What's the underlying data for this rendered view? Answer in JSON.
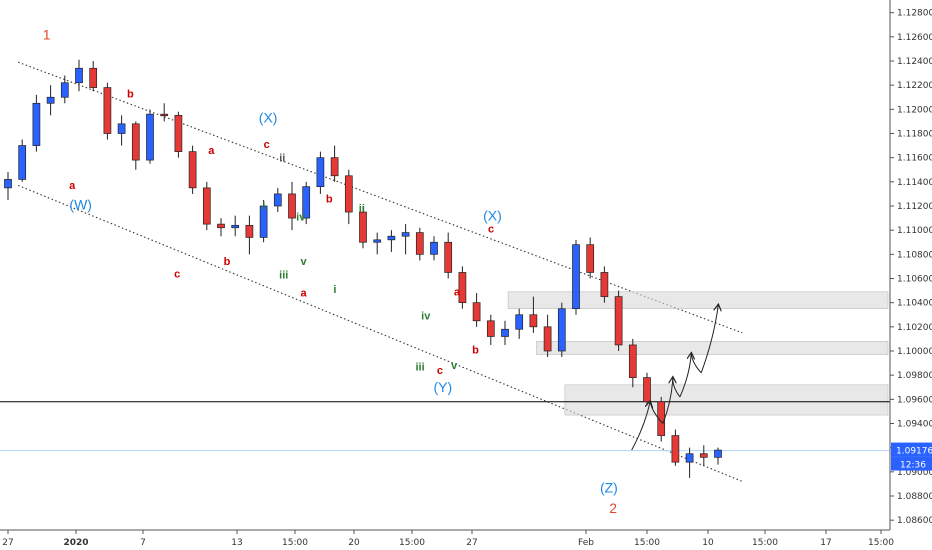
{
  "chart_data": {
    "type": "candlestick",
    "title": "",
    "xlabel": "",
    "ylabel": "",
    "ylim": [
      1.0856,
      1.1288
    ],
    "yticks": [
      "1.12800",
      "1.12600",
      "1.12400",
      "1.12200",
      "1.12000",
      "1.11800",
      "1.11600",
      "1.11400",
      "1.11200",
      "1.11000",
      "1.10800",
      "1.10600",
      "1.10400",
      "1.10200",
      "1.10000",
      "1.09800",
      "1.09600",
      "1.09400",
      "1.09200",
      "1.09000",
      "1.08800",
      "1.08600"
    ],
    "xticks": [
      "27",
      "2020",
      "7",
      "13",
      "15:00",
      "20",
      "15:00",
      "27",
      "Feb",
      "15:00",
      "10",
      "15:00",
      "17",
      "15:00"
    ],
    "price": {
      "last": "1.09176",
      "time": "12:36",
      "line_color": "#2962ff"
    },
    "horizontal_line": {
      "value": 1.0958,
      "color": "#000000"
    },
    "channel": {
      "upper": [
        [
          1,
          1.1239
        ],
        [
          52,
          1.1015
        ]
      ],
      "lower": [
        [
          1,
          1.1137
        ],
        [
          52,
          1.0892
        ]
      ]
    },
    "zones": [
      {
        "from": 35.5,
        "y_low": 1.1035,
        "y_high": 1.1049
      },
      {
        "from": 37.5,
        "y_low": 1.0997,
        "y_high": 1.1008
      },
      {
        "from": 39.5,
        "y_low": 1.0947,
        "y_high": 1.0972
      }
    ],
    "forecast_path": [
      [
        44.2,
        1.0918
      ],
      [
        45.5,
        1.0958
      ],
      [
        46.4,
        1.094
      ],
      [
        47.1,
        1.0978
      ],
      [
        47.6,
        1.0962
      ],
      [
        48.4,
        1.0998
      ],
      [
        49.1,
        1.0982
      ],
      [
        50.3,
        1.1038
      ]
    ],
    "wave_labels": [
      {
        "text": "1",
        "x": 3.0,
        "y": 1.1258,
        "color": "#e0492a",
        "size": "big"
      },
      {
        "text": "b",
        "x": 8.9,
        "y": 1.121,
        "color": "#cc0000",
        "size": "small"
      },
      {
        "text": "a",
        "x": 4.8,
        "y": 1.1134,
        "color": "#cc0000",
        "size": "small"
      },
      {
        "text": "(W)",
        "x": 5.4,
        "y": 1.1117,
        "color": "#1e88e5",
        "size": "big"
      },
      {
        "text": "c",
        "x": 12.2,
        "y": 1.1061,
        "color": "#cc0000",
        "size": "small"
      },
      {
        "text": "a",
        "x": 14.6,
        "y": 1.1163,
        "color": "#cc0000",
        "size": "small"
      },
      {
        "text": "b",
        "x": 15.7,
        "y": 1.1071,
        "color": "#cc0000",
        "size": "small"
      },
      {
        "text": "(X)",
        "x": 18.6,
        "y": 1.1189,
        "color": "#1e88e5",
        "size": "big"
      },
      {
        "text": "c",
        "x": 18.5,
        "y": 1.1168,
        "color": "#cc0000",
        "size": "small"
      },
      {
        "text": "ii",
        "x": 19.6,
        "y": 1.1157,
        "color": "#555555",
        "size": "small"
      },
      {
        "text": "i",
        "x": 18.3,
        "y": 1.1117,
        "color": "#2e7d32",
        "size": "small"
      },
      {
        "text": "iv",
        "x": 20.9,
        "y": 1.1108,
        "color": "#2e7d32",
        "size": "small"
      },
      {
        "text": "b",
        "x": 22.9,
        "y": 1.1123,
        "color": "#cc0000",
        "size": "small"
      },
      {
        "text": "ii",
        "x": 25.2,
        "y": 1.1115,
        "color": "#2e7d32",
        "size": "small"
      },
      {
        "text": "iii",
        "x": 19.7,
        "y": 1.106,
        "color": "#2e7d32",
        "size": "small"
      },
      {
        "text": "v",
        "x": 21.1,
        "y": 1.1071,
        "color": "#2e7d32",
        "size": "small"
      },
      {
        "text": "a",
        "x": 21.1,
        "y": 1.1045,
        "color": "#cc0000",
        "size": "small"
      },
      {
        "text": "i",
        "x": 23.3,
        "y": 1.1048,
        "color": "#2e7d32",
        "size": "small"
      },
      {
        "text": "(X)",
        "x": 34.4,
        "y": 1.1108,
        "color": "#1e88e5",
        "size": "big"
      },
      {
        "text": "c",
        "x": 34.3,
        "y": 1.1098,
        "color": "#cc0000",
        "size": "small"
      },
      {
        "text": "a",
        "x": 31.9,
        "y": 1.1046,
        "color": "#cc0000",
        "size": "small"
      },
      {
        "text": "iv",
        "x": 29.7,
        "y": 1.1026,
        "color": "#2e7d32",
        "size": "small"
      },
      {
        "text": "b",
        "x": 33.2,
        "y": 1.0998,
        "color": "#cc0000",
        "size": "small"
      },
      {
        "text": "iii",
        "x": 29.3,
        "y": 1.0984,
        "color": "#2e7d32",
        "size": "small"
      },
      {
        "text": "c",
        "x": 30.7,
        "y": 1.0981,
        "color": "#cc0000",
        "size": "small"
      },
      {
        "text": "v",
        "x": 31.7,
        "y": 1.0985,
        "color": "#2e7d32",
        "size": "small"
      },
      {
        "text": "(Y)",
        "x": 30.9,
        "y": 1.0966,
        "color": "#1e88e5",
        "size": "big"
      },
      {
        "text": "(Z)",
        "x": 42.6,
        "y": 1.0883,
        "color": "#1e88e5",
        "size": "big"
      },
      {
        "text": "2",
        "x": 42.9,
        "y": 1.0866,
        "color": "#e0492a",
        "size": "big"
      }
    ],
    "ohlc": [
      [
        1.1135,
        1.1148,
        1.1125,
        1.1142
      ],
      [
        1.1142,
        1.1175,
        1.114,
        1.117
      ],
      [
        1.117,
        1.1212,
        1.1165,
        1.1205
      ],
      [
        1.1205,
        1.122,
        1.1195,
        1.121
      ],
      [
        1.121,
        1.1228,
        1.1205,
        1.1222
      ],
      [
        1.1222,
        1.1241,
        1.1215,
        1.1234
      ],
      [
        1.1234,
        1.124,
        1.1215,
        1.1218
      ],
      [
        1.1218,
        1.1222,
        1.1175,
        1.118
      ],
      [
        1.118,
        1.1195,
        1.117,
        1.1188
      ],
      [
        1.1188,
        1.119,
        1.115,
        1.1158
      ],
      [
        1.1158,
        1.12,
        1.1155,
        1.1196
      ],
      [
        1.1196,
        1.1205,
        1.119,
        1.1195
      ],
      [
        1.1195,
        1.1198,
        1.116,
        1.1165
      ],
      [
        1.1165,
        1.117,
        1.113,
        1.1135
      ],
      [
        1.1135,
        1.114,
        1.11,
        1.1105
      ],
      [
        1.1105,
        1.111,
        1.1095,
        1.1102
      ],
      [
        1.1102,
        1.1112,
        1.1095,
        1.1104
      ],
      [
        1.1104,
        1.1112,
        1.108,
        1.1094
      ],
      [
        1.1094,
        1.1125,
        1.109,
        1.112
      ],
      [
        1.112,
        1.1135,
        1.1115,
        1.113
      ],
      [
        1.113,
        1.114,
        1.11,
        1.111
      ],
      [
        1.111,
        1.114,
        1.1105,
        1.1136
      ],
      [
        1.1136,
        1.1165,
        1.113,
        1.116
      ],
      [
        1.116,
        1.117,
        1.114,
        1.1145
      ],
      [
        1.1145,
        1.115,
        1.1105,
        1.1115
      ],
      [
        1.1115,
        1.112,
        1.1085,
        1.109
      ],
      [
        1.109,
        1.1098,
        1.108,
        1.1092
      ],
      [
        1.1092,
        1.11,
        1.1082,
        1.1095
      ],
      [
        1.1095,
        1.1105,
        1.108,
        1.1098
      ],
      [
        1.1098,
        1.1102,
        1.1075,
        1.108
      ],
      [
        1.108,
        1.1095,
        1.1075,
        1.109
      ],
      [
        1.109,
        1.1098,
        1.106,
        1.1065
      ],
      [
        1.1065,
        1.107,
        1.1035,
        1.104
      ],
      [
        1.104,
        1.1048,
        1.102,
        1.1025
      ],
      [
        1.1025,
        1.103,
        1.1005,
        1.1012
      ],
      [
        1.1012,
        1.1025,
        1.1005,
        1.1018
      ],
      [
        1.1018,
        1.1035,
        1.101,
        1.103
      ],
      [
        1.103,
        1.1045,
        1.1015,
        1.102
      ],
      [
        1.102,
        1.103,
        1.0995,
        1.1
      ],
      [
        1.1,
        1.104,
        1.0995,
        1.1035
      ],
      [
        1.1035,
        1.1092,
        1.103,
        1.1088
      ],
      [
        1.1088,
        1.1094,
        1.106,
        1.1065
      ],
      [
        1.1065,
        1.107,
        1.104,
        1.1045
      ],
      [
        1.1045,
        1.105,
        1.1,
        1.1005
      ],
      [
        1.1005,
        1.101,
        1.097,
        1.0978
      ],
      [
        1.0978,
        1.0982,
        1.0955,
        1.0958
      ],
      [
        1.0958,
        1.0962,
        1.0925,
        1.093
      ],
      [
        1.093,
        1.0935,
        1.0905,
        1.0908
      ],
      [
        1.0908,
        1.092,
        1.0895,
        1.0915
      ],
      [
        1.0915,
        1.0922,
        1.0905,
        1.0912
      ],
      [
        1.0912,
        1.092,
        1.0906,
        1.0918
      ]
    ]
  }
}
